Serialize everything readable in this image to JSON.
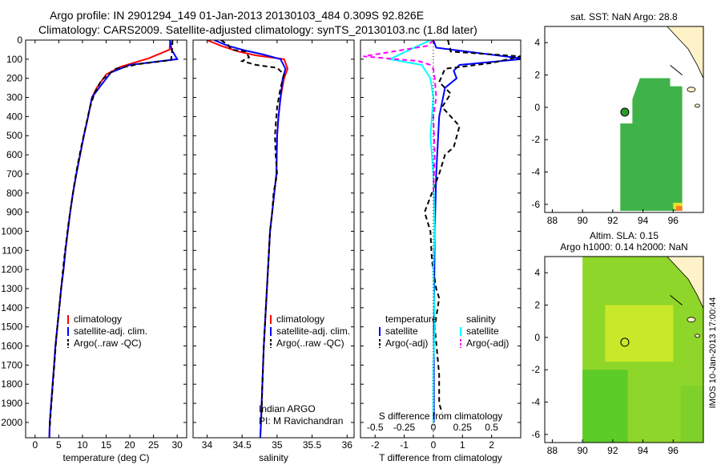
{
  "titles": {
    "line1": "Argo profile: IN 2901294_149 01-Jan-2013 20130103_484 0.309S 92.826E",
    "line2": "Climatology: CARS2009. Satellite-adjusted climatology: synTS_20130103.nc (1.8d later)",
    "sst_title": "sat. SST: NaN Argo: 28.8",
    "sla_title1": "Altim. SLA: 0.15",
    "sla_title2": "Argo h1000: 0.14 h2000: NaN",
    "side_stamp": "IMOS 10-Jan-2013 17:00:44",
    "sal_note1": "Indian ARGO",
    "sal_note2": "PI: M Ravichandran"
  },
  "colors": {
    "climatology": "#ff0000",
    "satellite": "#0000ff",
    "argo": "#000000",
    "sal_satellite": "#00ffff",
    "sal_argo": "#ff00ff",
    "land": "#fff2c8",
    "sst_field": "#3fb34a",
    "sla_field": "#8fd62a"
  },
  "chart_data": [
    {
      "type": "line",
      "name": "temperature-profile",
      "xlabel": "temperature (deg C)",
      "ylabel": "",
      "xlim": [
        -2,
        32
      ],
      "ylim": [
        2080,
        0
      ],
      "xticks": [
        0,
        5,
        10,
        15,
        20,
        25,
        30
      ],
      "yticks": [
        0,
        100,
        200,
        300,
        400,
        500,
        600,
        700,
        800,
        900,
        1000,
        1100,
        1200,
        1300,
        1400,
        1500,
        1600,
        1700,
        1800,
        1900,
        2000
      ],
      "legend": [
        "climatology",
        "satellite-adj. clim.",
        "Argo(..raw -QC)"
      ],
      "legend_placement": "bottom-center",
      "series": [
        {
          "name": "climatology",
          "color": "#ff0000",
          "dash": "none",
          "points": [
            [
              28.5,
              0
            ],
            [
              28.4,
              50
            ],
            [
              24,
              95
            ],
            [
              18,
              140
            ],
            [
              15,
              180
            ],
            [
              13,
              250
            ],
            [
              12,
              300
            ],
            [
              11.2,
              400
            ],
            [
              10.3,
              500
            ],
            [
              9.5,
              600
            ],
            [
              8.7,
              700
            ],
            [
              8,
              800
            ],
            [
              7.4,
              900
            ],
            [
              6.9,
              1000
            ],
            [
              6.4,
              1100
            ],
            [
              6,
              1200
            ],
            [
              5.5,
              1300
            ],
            [
              5.1,
              1400
            ],
            [
              4.7,
              1500
            ],
            [
              4.3,
              1600
            ],
            [
              4,
              1700
            ],
            [
              3.7,
              1800
            ],
            [
              3.4,
              1900
            ],
            [
              3.1,
              2000
            ],
            [
              3,
              2080
            ]
          ]
        },
        {
          "name": "satellite-adj. clim.",
          "color": "#0000ff",
          "dash": "none",
          "points": [
            [
              28.5,
              0
            ],
            [
              28.8,
              50
            ],
            [
              30,
              100
            ],
            [
              20,
              130
            ],
            [
              16,
              170
            ],
            [
              13.5,
              250
            ],
            [
              12,
              300
            ],
            [
              11.2,
              400
            ],
            [
              10.3,
              500
            ],
            [
              9.5,
              600
            ],
            [
              8.7,
              700
            ],
            [
              8,
              800
            ],
            [
              7.4,
              900
            ],
            [
              6.9,
              1000
            ],
            [
              6.4,
              1100
            ],
            [
              6,
              1200
            ],
            [
              5.5,
              1300
            ],
            [
              5.1,
              1400
            ],
            [
              4.7,
              1500
            ],
            [
              4.3,
              1600
            ],
            [
              4,
              1700
            ],
            [
              3.7,
              1800
            ],
            [
              3.4,
              1900
            ],
            [
              3.1,
              2000
            ],
            [
              3,
              2080
            ]
          ]
        },
        {
          "name": "Argo(..raw -QC)",
          "color": "#000000",
          "dash": "6,4",
          "points": [
            [
              29,
              0
            ],
            [
              28.9,
              60
            ],
            [
              28.7,
              105
            ],
            [
              22,
              125
            ],
            [
              17,
              150
            ],
            [
              14,
              210
            ],
            [
              12.5,
              280
            ],
            [
              11.5,
              360
            ],
            [
              10.7,
              450
            ],
            [
              9.8,
              550
            ],
            [
              9,
              650
            ],
            [
              8.3,
              750
            ],
            [
              7.7,
              850
            ],
            [
              7.1,
              950
            ],
            [
              6.6,
              1050
            ],
            [
              6.1,
              1150
            ],
            [
              5.7,
              1250
            ],
            [
              5.3,
              1350
            ],
            [
              4.9,
              1450
            ],
            [
              4.5,
              1550
            ],
            [
              4.2,
              1650
            ],
            [
              3.9,
              1750
            ],
            [
              3.6,
              1850
            ],
            [
              3.3,
              1950
            ],
            [
              3.1,
              2030
            ]
          ]
        }
      ]
    },
    {
      "type": "line",
      "name": "salinity-profile",
      "xlabel": "salinity",
      "xlim": [
        33.8,
        36.1
      ],
      "ylim": [
        2080,
        0
      ],
      "xticks": [
        34,
        34.5,
        35,
        35.5,
        36
      ],
      "legend": [
        "climatology",
        "satellite-adj. clim.",
        "Argo(..raw -QC)"
      ],
      "legend_placement": "bottom-right",
      "series": [
        {
          "name": "climatology",
          "color": "#ff0000",
          "dash": "none",
          "points": [
            [
              34.0,
              0
            ],
            [
              34.2,
              30
            ],
            [
              34.45,
              60
            ],
            [
              34.7,
              80
            ],
            [
              35.1,
              100
            ],
            [
              35.15,
              150
            ],
            [
              35.1,
              200
            ],
            [
              35.05,
              300
            ],
            [
              35.02,
              400
            ],
            [
              35.0,
              500
            ],
            [
              34.99,
              700
            ],
            [
              34.96,
              800
            ],
            [
              34.93,
              900
            ],
            [
              34.9,
              1000
            ],
            [
              34.87,
              1200
            ],
            [
              34.84,
              1400
            ],
            [
              34.81,
              1600
            ],
            [
              34.79,
              1800
            ],
            [
              34.77,
              2000
            ],
            [
              34.76,
              2080
            ]
          ]
        },
        {
          "name": "satellite-adj. clim.",
          "color": "#0000ff",
          "dash": "none",
          "points": [
            [
              34.1,
              0
            ],
            [
              34.3,
              30
            ],
            [
              34.55,
              55
            ],
            [
              34.8,
              75
            ],
            [
              35.05,
              100
            ],
            [
              35.12,
              150
            ],
            [
              35.08,
              200
            ],
            [
              35.05,
              300
            ],
            [
              35.02,
              400
            ],
            [
              35.0,
              500
            ],
            [
              34.99,
              700
            ],
            [
              34.96,
              800
            ],
            [
              34.93,
              900
            ],
            [
              34.9,
              1000
            ],
            [
              34.87,
              1200
            ],
            [
              34.84,
              1400
            ],
            [
              34.81,
              1600
            ],
            [
              34.79,
              1800
            ],
            [
              34.77,
              2000
            ],
            [
              34.76,
              2080
            ]
          ]
        },
        {
          "name": "Argo(..raw -QC)",
          "color": "#000000",
          "dash": "6,4",
          "points": [
            [
              34.2,
              0
            ],
            [
              34.3,
              25
            ],
            [
              34.35,
              50
            ],
            [
              34.55,
              60
            ],
            [
              34.6,
              90
            ],
            [
              34.5,
              110
            ],
            [
              34.7,
              130
            ],
            [
              35.0,
              145
            ],
            [
              35.1,
              180
            ],
            [
              35.05,
              250
            ],
            [
              35.0,
              350
            ],
            [
              34.98,
              450
            ],
            [
              34.97,
              500
            ],
            [
              34.98,
              600
            ],
            [
              35.0,
              700
            ],
            [
              34.95,
              800
            ],
            [
              34.93,
              900
            ],
            [
              34.9,
              1000
            ],
            [
              34.87,
              1200
            ],
            [
              34.84,
              1400
            ],
            [
              34.81,
              1600
            ],
            [
              34.79,
              1800
            ],
            [
              34.78,
              1950
            ]
          ]
        }
      ]
    },
    {
      "type": "line",
      "name": "difference-profile",
      "xlabel": "T difference from climatology",
      "top_axis_label": "S difference from climatology",
      "xlim": [
        -2.5,
        3
      ],
      "ylim": [
        2080,
        0
      ],
      "xticks": [
        -2,
        -1,
        0,
        1,
        2
      ],
      "top_xticks": [
        "-0.5",
        "-0.25",
        "0",
        "0.25",
        "0.5"
      ],
      "legend": [
        "temperature",
        "satellite",
        "Argo(-adj)",
        "salinity",
        "satellite",
        "Argo(-adj)"
      ],
      "legend_placement": "bottom-center",
      "series": [
        {
          "name": "temperature satellite",
          "color": "#0000ff",
          "dash": "none",
          "points": [
            [
              0,
              0
            ],
            [
              0.1,
              40
            ],
            [
              3,
              95
            ],
            [
              3,
              100
            ],
            [
              0.9,
              130
            ],
            [
              0.7,
              160
            ],
            [
              0.8,
              200
            ],
            [
              0.4,
              250
            ],
            [
              0.2,
              400
            ],
            [
              0.1,
              700
            ],
            [
              0.05,
              1000
            ],
            [
              0.02,
              1500
            ],
            [
              0.02,
              2000
            ]
          ]
        },
        {
          "name": "temperature Argo(-adj)",
          "color": "#000000",
          "dash": "6,4",
          "points": [
            [
              0.5,
              0
            ],
            [
              0.6,
              60
            ],
            [
              3,
              85
            ],
            [
              2,
              120
            ],
            [
              0.4,
              150
            ],
            [
              0.2,
              220
            ],
            [
              0.6,
              280
            ],
            [
              0.3,
              350
            ],
            [
              0.9,
              450
            ],
            [
              0.7,
              560
            ],
            [
              0.4,
              600
            ],
            [
              0.2,
              700
            ],
            [
              -0.3,
              900
            ],
            [
              -0.1,
              1000
            ],
            [
              -0.05,
              1150
            ],
            [
              0.1,
              1300
            ],
            [
              0.2,
              1350
            ],
            [
              0.05,
              1500
            ],
            [
              0.2,
              1750
            ],
            [
              0.2,
              1900
            ],
            [
              0.3,
              1950
            ]
          ]
        },
        {
          "name": "salinity satellite",
          "color": "#00ffff",
          "dash": "none",
          "points": [
            [
              -0.1,
              0
            ],
            [
              -1.5,
              100
            ],
            [
              -0.4,
              130
            ],
            [
              -0.1,
              200
            ],
            [
              0,
              300
            ],
            [
              -0.1,
              500
            ],
            [
              0.0,
              700
            ],
            [
              0.05,
              1000
            ],
            [
              0,
              1200
            ],
            [
              0.05,
              1500
            ],
            [
              0,
              1700
            ],
            [
              0,
              2000
            ]
          ]
        },
        {
          "name": "salinity Argo(-adj)",
          "color": "#ff00ff",
          "dash": "6,4",
          "points": [
            [
              0,
              0
            ],
            [
              -0.2,
              30
            ],
            [
              -2.4,
              85
            ],
            [
              -0.5,
              110
            ],
            [
              -0.1,
              130
            ],
            [
              0,
              150
            ],
            [
              0.05,
              200
            ],
            [
              0.1,
              300
            ],
            [
              0,
              400
            ],
            [
              0.05,
              600
            ],
            [
              0,
              800
            ]
          ]
        }
      ]
    },
    {
      "type": "heatmap",
      "name": "sst-map",
      "xticks": [
        88,
        90,
        92,
        94,
        96
      ],
      "yticks": [
        4,
        2,
        0,
        -2,
        -4,
        -6
      ],
      "xlim": [
        87.5,
        98
      ],
      "ylim": [
        -6.5,
        5
      ],
      "argo_point": [
        92.8,
        -0.3
      ]
    },
    {
      "type": "heatmap",
      "name": "sla-map",
      "xticks": [
        88,
        90,
        92,
        94,
        96
      ],
      "yticks": [
        4,
        2,
        0,
        -2,
        -4,
        -6
      ],
      "xlim": [
        87.5,
        98
      ],
      "ylim": [
        -6.5,
        5
      ],
      "argo_point": [
        92.8,
        -0.3
      ]
    }
  ]
}
